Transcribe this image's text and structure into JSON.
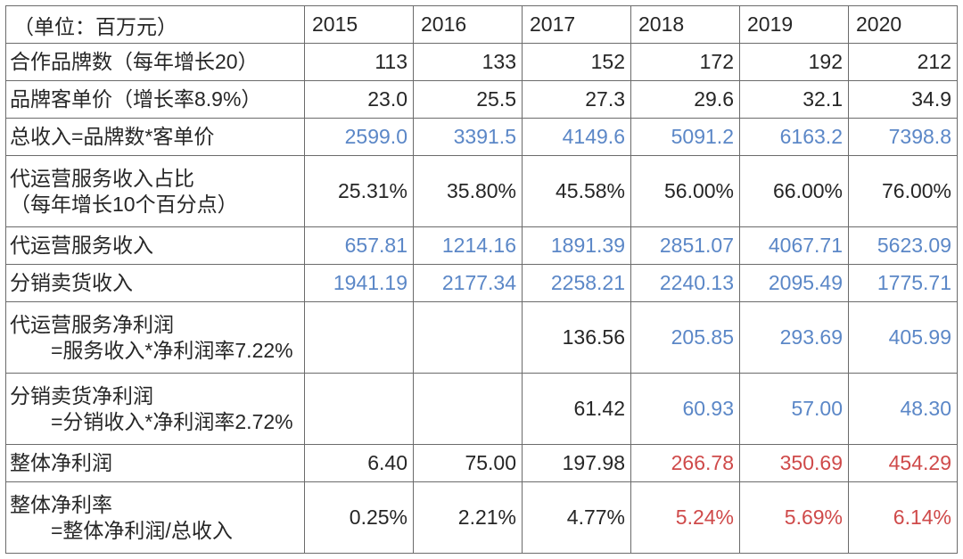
{
  "table": {
    "header_label": "（单位：百万元）",
    "years": [
      "2015",
      "2016",
      "2017",
      "2018",
      "2019",
      "2020"
    ],
    "rows": [
      {
        "label_lines": [
          "合作品牌数（每年增长20）"
        ],
        "values": [
          {
            "v": "113"
          },
          {
            "v": "133"
          },
          {
            "v": "152"
          },
          {
            "v": "172"
          },
          {
            "v": "192"
          },
          {
            "v": "212"
          }
        ]
      },
      {
        "label_lines": [
          "品牌客单价（增长率8.9%）"
        ],
        "values": [
          {
            "v": "23.0"
          },
          {
            "v": "25.5"
          },
          {
            "v": "27.3"
          },
          {
            "v": "29.6"
          },
          {
            "v": "32.1"
          },
          {
            "v": "34.9"
          }
        ]
      },
      {
        "label_lines": [
          "总收入=品牌数*客单价"
        ],
        "values": [
          {
            "v": "2599.0",
            "c": "blue"
          },
          {
            "v": "3391.5",
            "c": "blue"
          },
          {
            "v": "4149.6",
            "c": "blue"
          },
          {
            "v": "5091.2",
            "c": "blue"
          },
          {
            "v": "6163.2",
            "c": "blue"
          },
          {
            "v": "7398.8",
            "c": "blue"
          }
        ]
      },
      {
        "label_lines": [
          "代运营服务收入占比",
          "（每年增长10个百分点）"
        ],
        "values": [
          {
            "v": "25.31%"
          },
          {
            "v": "35.80%"
          },
          {
            "v": "45.58%"
          },
          {
            "v": "56.00%"
          },
          {
            "v": "66.00%"
          },
          {
            "v": "76.00%"
          }
        ]
      },
      {
        "label_lines": [
          "代运营服务收入"
        ],
        "values": [
          {
            "v": "657.81",
            "c": "blue"
          },
          {
            "v": "1214.16",
            "c": "blue"
          },
          {
            "v": "1891.39",
            "c": "blue"
          },
          {
            "v": "2851.07",
            "c": "blue"
          },
          {
            "v": "4067.71",
            "c": "blue"
          },
          {
            "v": "5623.09",
            "c": "blue"
          }
        ]
      },
      {
        "label_lines": [
          "分销卖货收入"
        ],
        "values": [
          {
            "v": "1941.19",
            "c": "blue"
          },
          {
            "v": "2177.34",
            "c": "blue"
          },
          {
            "v": "2258.21",
            "c": "blue"
          },
          {
            "v": "2240.13",
            "c": "blue"
          },
          {
            "v": "2095.49",
            "c": "blue"
          },
          {
            "v": "1775.71",
            "c": "blue"
          }
        ]
      },
      {
        "label_lines": [
          "代运营服务净利润",
          "=服务收入*净利润率7.22%"
        ],
        "indent2": true,
        "values": [
          {
            "v": ""
          },
          {
            "v": ""
          },
          {
            "v": "136.56"
          },
          {
            "v": "205.85",
            "c": "blue"
          },
          {
            "v": "293.69",
            "c": "blue"
          },
          {
            "v": "405.99",
            "c": "blue"
          }
        ]
      },
      {
        "label_lines": [
          "分销卖货净利润",
          "=分销收入*净利润率2.72%"
        ],
        "indent2": true,
        "values": [
          {
            "v": ""
          },
          {
            "v": ""
          },
          {
            "v": "61.42"
          },
          {
            "v": "60.93",
            "c": "blue"
          },
          {
            "v": "57.00",
            "c": "blue"
          },
          {
            "v": "48.30",
            "c": "blue"
          }
        ]
      },
      {
        "label_lines": [
          "整体净利润"
        ],
        "values": [
          {
            "v": "6.40"
          },
          {
            "v": "75.00"
          },
          {
            "v": "197.98"
          },
          {
            "v": "266.78",
            "c": "red"
          },
          {
            "v": "350.69",
            "c": "red"
          },
          {
            "v": "454.29",
            "c": "red"
          }
        ]
      },
      {
        "label_lines": [
          "整体净利率",
          "=整体净利润/总收入"
        ],
        "indent2": true,
        "values": [
          {
            "v": "0.25%"
          },
          {
            "v": "2.21%"
          },
          {
            "v": "4.77%"
          },
          {
            "v": "5.24%",
            "c": "red"
          },
          {
            "v": "5.69%",
            "c": "red"
          },
          {
            "v": "6.14%",
            "c": "red"
          }
        ]
      }
    ],
    "colors": {
      "blue": "#5b87c7",
      "red": "#cf4a4a",
      "text": "#262626",
      "border": "#6b6b6b",
      "bg": "#ffffff"
    }
  }
}
